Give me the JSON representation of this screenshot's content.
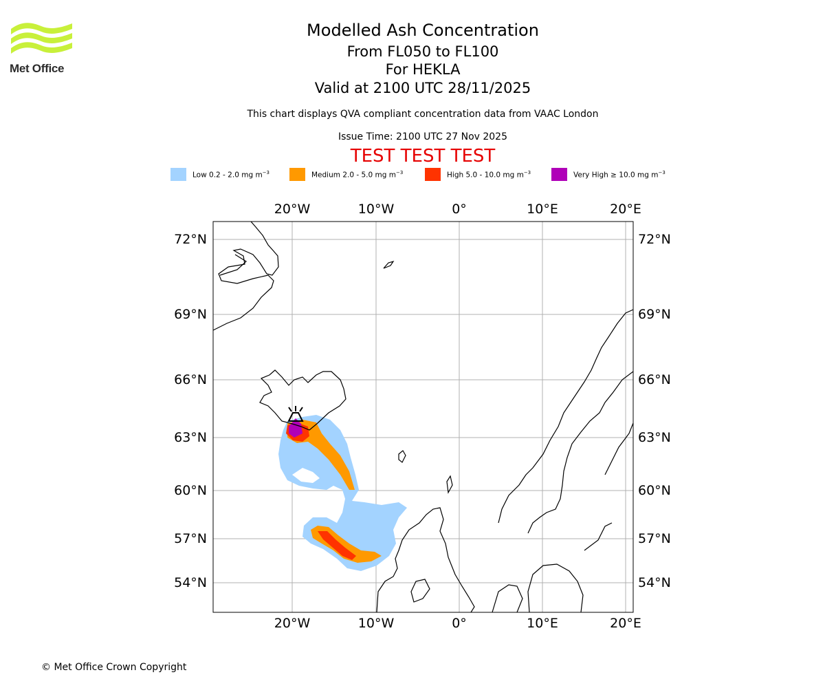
{
  "branding": {
    "logo_text": "Met Office",
    "copyright": "© Met Office Crown Copyright"
  },
  "titles": {
    "main": "Modelled Ash Concentration",
    "levels": "From FL050 to FL100",
    "volcano": "For HEKLA",
    "valid": "Valid at 2100 UTC 28/11/2025",
    "description": "This chart displays QVA compliant concentration data from VAAC London",
    "issue": "Issue Time: 2100 UTC 27 Nov 2025",
    "test_banner": "TEST TEST TEST"
  },
  "legend": [
    {
      "label": "Low 0.2 - 2.0 mg m",
      "exp": "−3",
      "color": "#a3d3ff"
    },
    {
      "label": "Medium 2.0 - 5.0 mg m",
      "exp": "−3",
      "color": "#ff9900"
    },
    {
      "label": "High 5.0 - 10.0 mg m",
      "exp": "−3",
      "color": "#ff3300"
    },
    {
      "label": "Very High  ≥  10.0 mg m",
      "exp": "−3",
      "color": "#b000b8"
    }
  ],
  "map": {
    "lon_labels": [
      "20°W",
      "10°W",
      "0°",
      "10°E",
      "20°E"
    ],
    "lat_labels": [
      "72°N",
      "69°N",
      "66°N",
      "63°N",
      "60°N",
      "57°N",
      "54°N"
    ],
    "volcano_name": "HEKLA",
    "colors": {
      "low": "#a3d3ff",
      "medium": "#ff9900",
      "high": "#ff3300",
      "very_high": "#b000b8",
      "grid": "#b0b0b0"
    }
  }
}
